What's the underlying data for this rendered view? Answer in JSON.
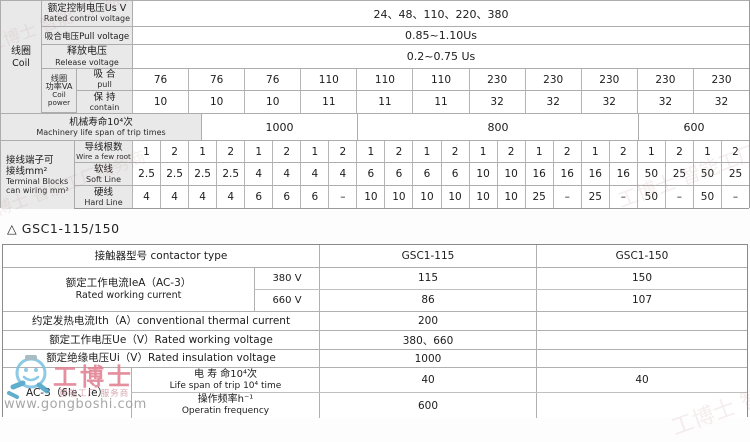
{
  "table1": {
    "coil": {
      "label_cn": "线圈",
      "label_en": "Coil"
    },
    "rated_control": {
      "label_cn": "额定控制电压Us V",
      "label_en": "Rated control voltage",
      "value": "24、48、110、220、380"
    },
    "pull_voltage": {
      "label": "吸合电压Pull voltage",
      "value": "0.85~1.10Us"
    },
    "release_voltage": {
      "label_cn": "释放电压",
      "label_en": "Release voltage",
      "value": "0.2~0.75 Us"
    },
    "coil_power": {
      "label_cn1": "线圈",
      "label_cn2": "功率VA",
      "label_en1": "Coil",
      "label_en2": "power",
      "pull": {
        "label_cn": "吸 合",
        "label_en": "pull",
        "values": [
          "76",
          "76",
          "76",
          "110",
          "110",
          "110",
          "230",
          "230",
          "230",
          "230",
          "230"
        ]
      },
      "contain": {
        "label_cn": "保 持",
        "label_en": "contain",
        "values": [
          "10",
          "10",
          "10",
          "11",
          "11",
          "11",
          "32",
          "32",
          "32",
          "32",
          "32"
        ]
      }
    },
    "mech_life": {
      "label_cn": "机械寿命10⁴次",
      "label_en": "Machinery life span of trip times",
      "values": [
        "1000",
        "800",
        "600"
      ]
    },
    "terminal": {
      "label_cn1": "接线端子可",
      "label_cn2": "接线mm²",
      "label_en1": "Terminal Blocks",
      "label_en2": "can wiring mm²",
      "wire_roots": {
        "label_cn": "导线根数",
        "label_en": "Wire a few root",
        "values": [
          "1",
          "2",
          "1",
          "2",
          "1",
          "2",
          "1",
          "2",
          "1",
          "2",
          "1",
          "2",
          "1",
          "2",
          "1",
          "2",
          "1",
          "2",
          "1",
          "2",
          "1",
          "2"
        ]
      },
      "soft": {
        "label_cn": "软线",
        "label_en": "Soft Line",
        "values": [
          "2.5",
          "2.5",
          "2.5",
          "2.5",
          "4",
          "4",
          "4",
          "4",
          "6",
          "6",
          "6",
          "6",
          "10",
          "10",
          "16",
          "16",
          "16",
          "16",
          "50",
          "25",
          "50",
          "25"
        ]
      },
      "hard": {
        "label_cn": "硬线",
        "label_en": "Hard Line",
        "values": [
          "4",
          "4",
          "4",
          "4",
          "6",
          "6",
          "6",
          "–",
          "10",
          "10",
          "10",
          "10",
          "10",
          "10",
          "25",
          "–",
          "25",
          "–",
          "50",
          "–",
          "50",
          "–"
        ]
      }
    }
  },
  "section_title": "△ GSC1-115/150",
  "table2": {
    "header": {
      "label": "接触器型号 contactor type",
      "col1": "GSC1-115",
      "col2": "GSC1-150"
    },
    "rated_current": {
      "label_cn": "额定工作电流IeA（AC-3）",
      "label_en": "Rated working current",
      "rows": [
        {
          "volt": "380 V",
          "v1": "115",
          "v2": "150"
        },
        {
          "volt": "660 V",
          "v1": "86",
          "v2": "107"
        }
      ]
    },
    "thermal": {
      "label": "约定发热电流Ith（A）conventional thermal current",
      "value": "200"
    },
    "working_voltage": {
      "label": "额定工作电压Ue（V）Rated working voltage",
      "value": "380、660"
    },
    "insulation": {
      "label": "额定绝缘电压Ui（V）Rated insulation voltage",
      "value": "1000"
    },
    "ac3": {
      "label": "AC-3（6Ie、Ie）",
      "life": {
        "label_cn": "电 寿 命10⁴次",
        "label_en": "Life span of trip 10⁴ time",
        "v1": "40",
        "v2": "40"
      },
      "freq": {
        "label_cn": "操作频率h⁻¹",
        "label_en": "Operatin frequency",
        "value": "600"
      }
    }
  },
  "watermark": {
    "brand": "工博士",
    "tagline": "智能工厂 服务商",
    "url": "www.gongboshi.com",
    "tile_text": "工博士 智能工厂服务商",
    "brand_color": "#e27f90"
  }
}
